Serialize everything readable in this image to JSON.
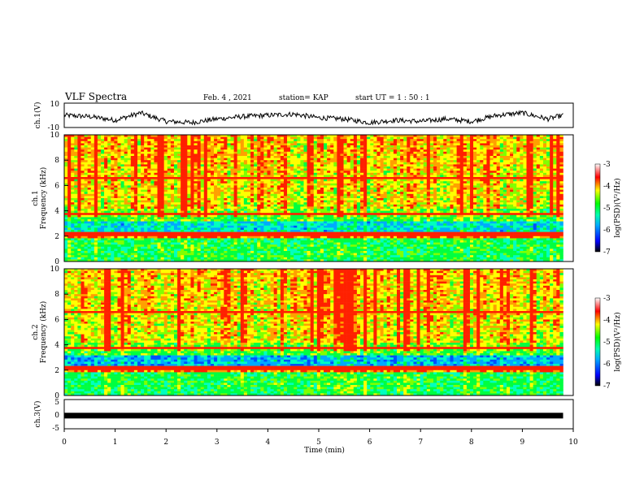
{
  "header": {
    "title": "VLF Spectra",
    "date": "Feb. 4 , 2021",
    "station": "station= KAP",
    "start_ut": "start  UT =   1 : 50 : 1"
  },
  "colors": {
    "spectrogram_scale": [
      "#000000",
      "#0000ff",
      "#00aaff",
      "#00ffb0",
      "#00ff00",
      "#ffff00",
      "#ff0000",
      "#ffffff"
    ]
  },
  "chart_data": [
    {
      "type": "line",
      "name": "ch1_waveform",
      "ylabel": "ch.1(V)",
      "ylim": [
        -10,
        10
      ],
      "yticks": [
        "10",
        "-10"
      ],
      "xlim": [
        0,
        9.8
      ],
      "x": [
        0,
        0.5,
        1.0,
        1.5,
        2.0,
        2.5,
        3.0,
        3.5,
        4.0,
        4.5,
        5.0,
        5.5,
        6.0,
        6.5,
        7.0,
        7.5,
        8.0,
        8.5,
        9.0,
        9.5,
        9.8
      ],
      "y": [
        0,
        -1,
        -4,
        2,
        -5,
        -6,
        -3,
        -1,
        0,
        1,
        -2,
        -3,
        -6,
        -4,
        -5,
        -3,
        -5,
        0,
        2,
        -3,
        0
      ]
    },
    {
      "type": "heatmap",
      "name": "ch1_spectrogram",
      "ylabel": "ch.1\nFrequency (kHz)",
      "ylim": [
        0,
        10
      ],
      "yticks": [
        "0",
        "2",
        "4",
        "6",
        "8",
        "10"
      ],
      "colorbar": {
        "label": "log(PSD)(V²/Hz)",
        "ticks": [
          "-3",
          "-4",
          "-5",
          "-6",
          "-7"
        ],
        "range": [
          -7,
          -3
        ]
      }
    },
    {
      "type": "heatmap",
      "name": "ch2_spectrogram",
      "ylabel": "ch.2\nFrequency (kHz)",
      "ylim": [
        0,
        10
      ],
      "yticks": [
        "0",
        "2",
        "4",
        "6",
        "8",
        "10"
      ],
      "colorbar": {
        "label": "log(PSD)(V²/Hz)",
        "ticks": [
          "-3",
          "-4",
          "-5",
          "-6",
          "-7"
        ],
        "range": [
          -7,
          -3
        ]
      }
    },
    {
      "type": "line",
      "name": "ch3_waveform",
      "ylabel": "ch.3(V)",
      "ylim": [
        -5,
        5
      ],
      "yticks": [
        "5",
        "0",
        "-5"
      ],
      "xlim": [
        0,
        9.8
      ],
      "x": [
        0,
        9.8
      ],
      "y": [
        -0.5,
        -0.5
      ]
    }
  ],
  "xaxis": {
    "label": "Time  (min)",
    "ticks": [
      "0",
      "1",
      "2",
      "3",
      "4",
      "5",
      "6",
      "7",
      "8",
      "9",
      "10"
    ],
    "range": [
      0,
      10
    ]
  }
}
